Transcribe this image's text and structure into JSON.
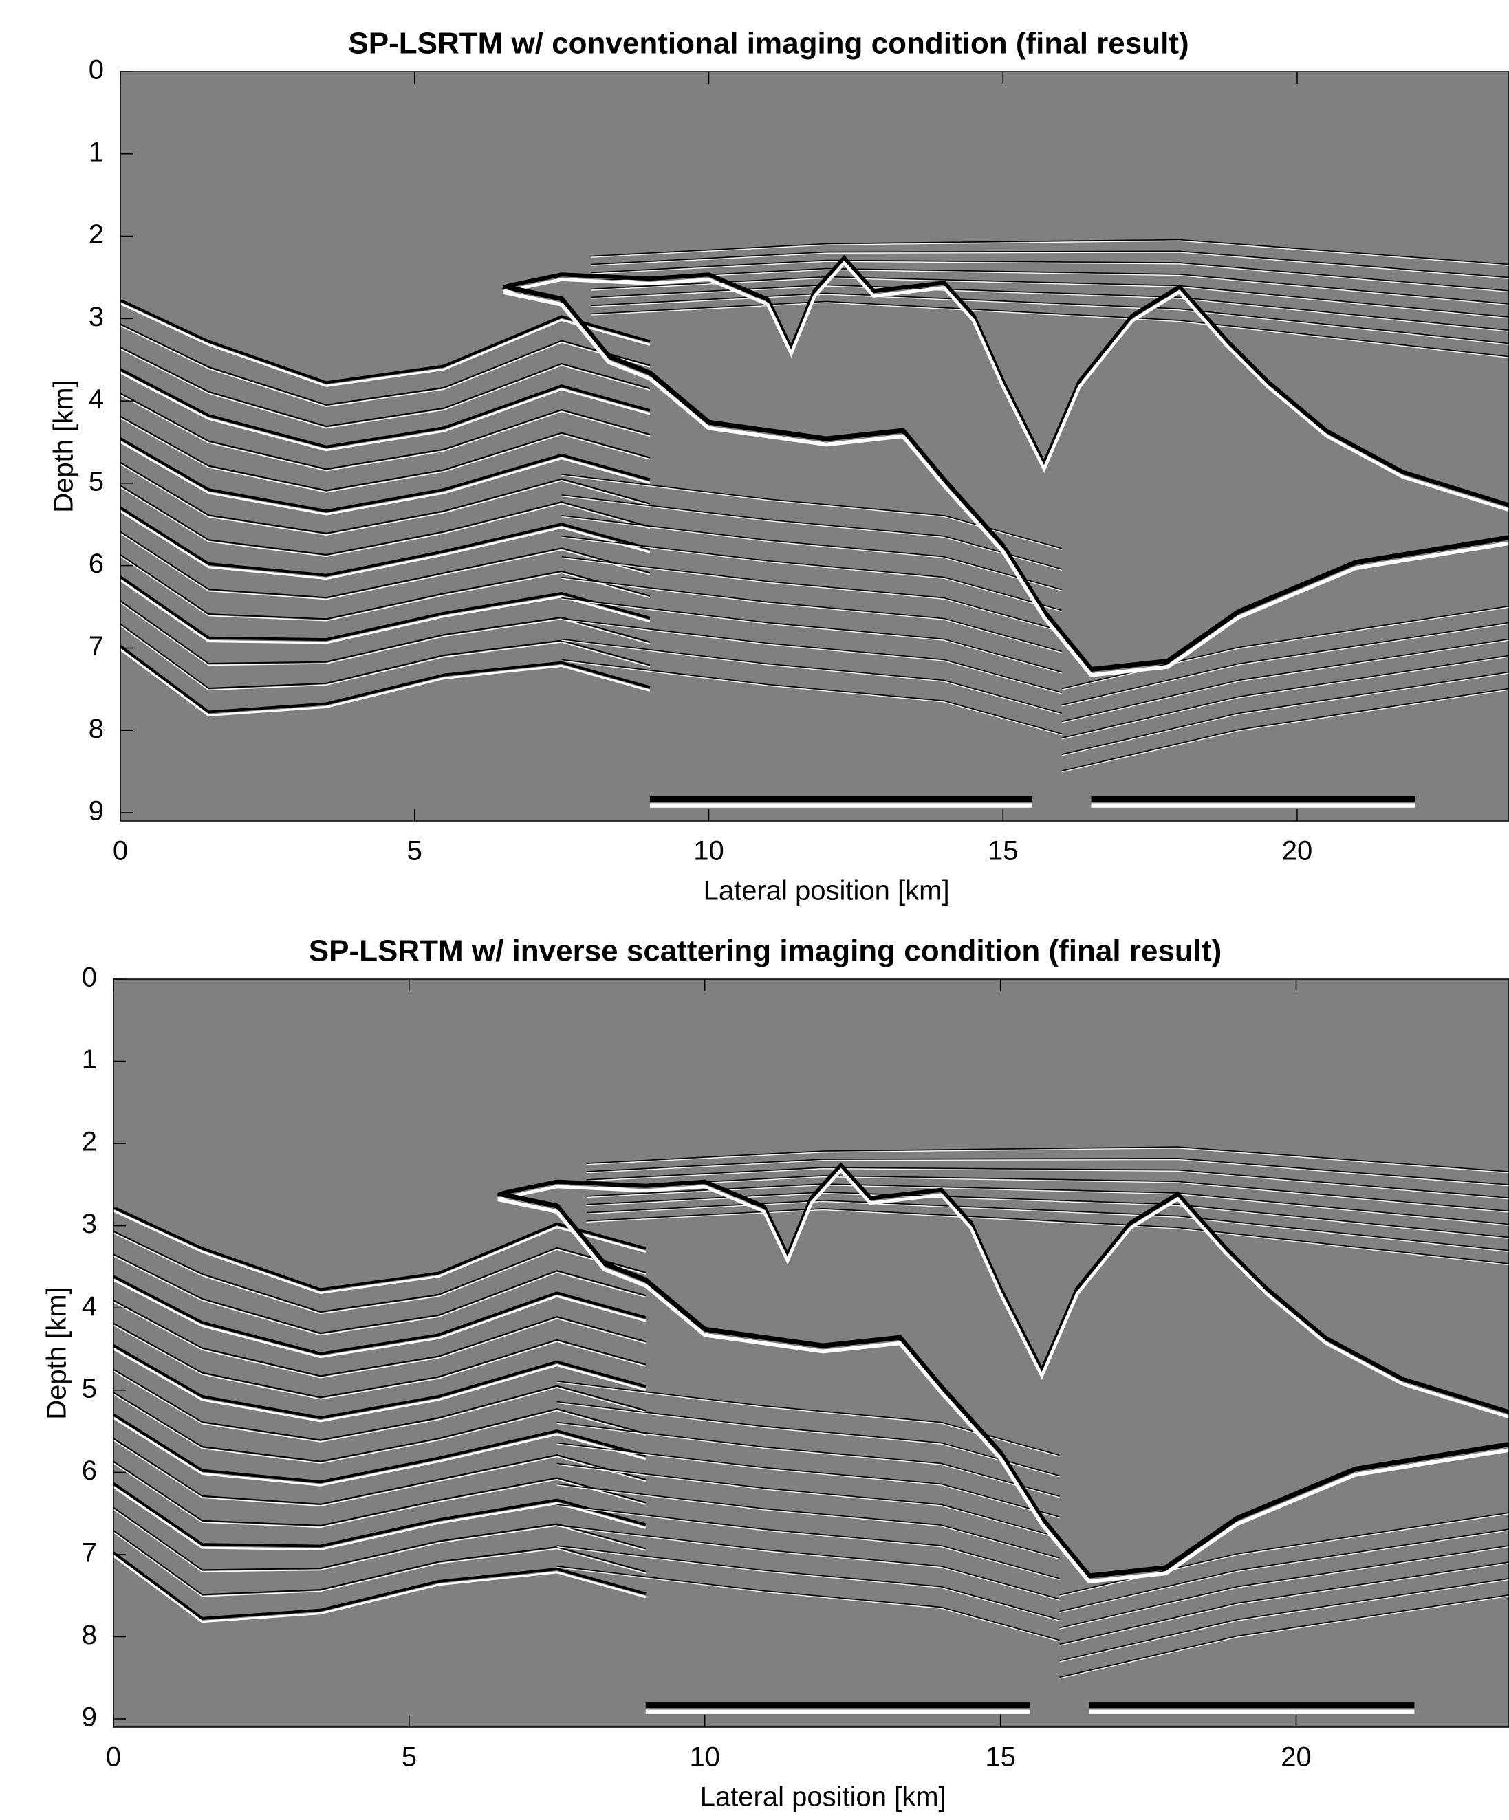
{
  "chart_data": [
    {
      "type": "image",
      "title": "SP-LSRTM w/ conventional imaging condition (final result)",
      "xlabel": "Lateral position [km]",
      "ylabel": "Depth [km]",
      "xlim": [
        0,
        23.6
      ],
      "ylim": [
        0,
        9.1
      ],
      "xticks": [
        0,
        5,
        10,
        15,
        20
      ],
      "yticks": [
        0,
        1,
        2,
        3,
        4,
        5,
        6,
        7,
        8,
        9
      ],
      "y_reversed": true
    },
    {
      "type": "image",
      "title": "SP-LSRTM w/ inverse scattering imaging condition (final result)",
      "xlabel": "Lateral position [km]",
      "ylabel": "Depth [km]",
      "xlim": [
        0,
        23.6
      ],
      "ylim": [
        0,
        9.1
      ],
      "xticks": [
        0,
        5,
        10,
        15,
        20
      ],
      "yticks": [
        0,
        1,
        2,
        3,
        4,
        5,
        6,
        7,
        8,
        9
      ],
      "y_reversed": true
    }
  ]
}
